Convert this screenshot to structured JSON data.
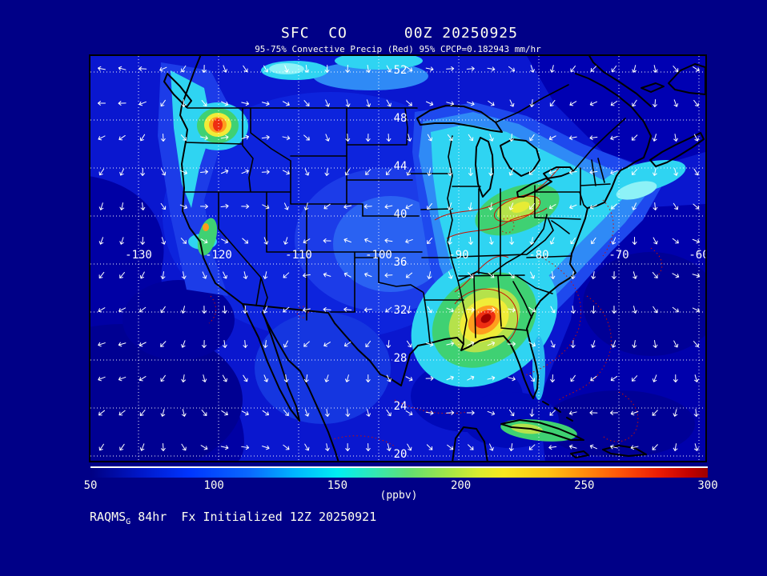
{
  "header": {
    "title": "SFC  CO      00Z 20250925",
    "subtitle": "95-75% Convective Precip (Red) 95% CPCP=0.182943 mm/hr"
  },
  "footer": {
    "model": "RAQMS",
    "model_subscript": "G",
    "rest": " 84hr  Fx Initialized 12Z 20250921"
  },
  "colorbar": {
    "unit_label": "(ppbv)",
    "ticks": [
      "50",
      "100",
      "150",
      "200",
      "250",
      "300"
    ]
  },
  "chart_data": {
    "type": "heatmap",
    "title": "SFC CO 00Z 20250925",
    "field": "Surface carbon monoxide mixing ratio",
    "units": "ppbv",
    "scale_min": 50,
    "scale_max": 300,
    "colorbar_ticks": [
      50,
      100,
      150,
      200,
      250,
      300
    ],
    "lat_labels": [
      52,
      48,
      44,
      40,
      36,
      32,
      28,
      24,
      20
    ],
    "lon_labels": [
      -130,
      -120,
      -110,
      -100,
      -90,
      -80,
      -70,
      -60
    ],
    "grid_spacing_deg": {
      "lat": 4,
      "lon": 10
    },
    "map_extent": {
      "lon": [
        -136,
        -59
      ],
      "lat": [
        19.6,
        53.3
      ]
    },
    "valid_time": "00Z 20250925",
    "initialized": "12Z 20250921",
    "forecast_hour": "84hr",
    "hotspots": [
      {
        "name": "Washington state plume",
        "lon": -120.3,
        "lat": 47.6,
        "peak_ppbv": 285
      },
      {
        "name": "Alabama / Georgia plume",
        "lon": -86.6,
        "lat": 31.5,
        "peak_ppbv": 300
      },
      {
        "name": "Ohio Valley enhancement",
        "lon": -82.5,
        "lat": 40.3,
        "peak_ppbv": 200
      },
      {
        "name": "Northeast US / New England band",
        "lon": -75,
        "lat": 42,
        "peak_ppbv": 170
      },
      {
        "name": "California central valley spot",
        "lon": -121.5,
        "lat": 38.5,
        "peak_ppbv": 230
      }
    ],
    "background_ocean_ppbv": [
      60,
      95
    ],
    "overlays": [
      "white 10m wind vectors",
      "red solid/dotted convective precipitation contours (95-75%)",
      "white dotted lat/lon graticule",
      "black coastlines and state borders"
    ]
  }
}
